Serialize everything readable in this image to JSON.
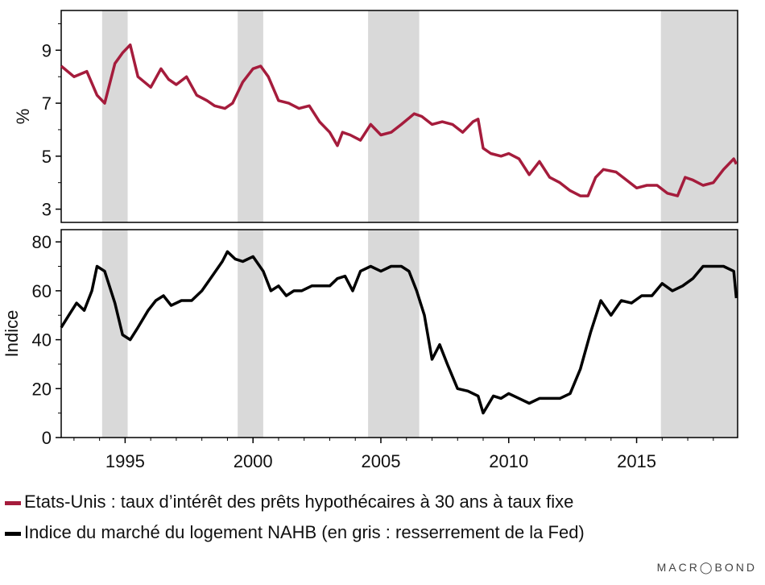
{
  "chart_data": [
    {
      "type": "line",
      "ylabel": "%",
      "ylim": [
        2.5,
        10.5
      ],
      "yticks": [
        3,
        5,
        7,
        9
      ],
      "color": "#a51c3c",
      "series": [
        {
          "name": "Etats-Unis : taux d’intérêt des prêts hypothécaires à 30 ans à taux fixe",
          "x": [
            1992.5,
            1993.0,
            1993.5,
            1993.9,
            1994.2,
            1994.6,
            1994.9,
            1995.2,
            1995.5,
            1996.0,
            1996.4,
            1996.7,
            1997.0,
            1997.4,
            1997.8,
            1998.2,
            1998.5,
            1998.9,
            1999.2,
            1999.6,
            2000.0,
            2000.3,
            2000.6,
            2001.0,
            2001.4,
            2001.8,
            2002.2,
            2002.6,
            2003.0,
            2003.3,
            2003.5,
            2003.8,
            2004.2,
            2004.6,
            2005.0,
            2005.4,
            2005.8,
            2006.3,
            2006.6,
            2007.0,
            2007.4,
            2007.8,
            2008.2,
            2008.6,
            2008.8,
            2009.0,
            2009.3,
            2009.7,
            2010.0,
            2010.4,
            2010.8,
            2011.2,
            2011.6,
            2012.0,
            2012.4,
            2012.8,
            2013.1,
            2013.4,
            2013.7,
            2014.2,
            2014.6,
            2015.0,
            2015.4,
            2015.8,
            2016.2,
            2016.6,
            2016.9,
            2017.2,
            2017.6,
            2018.0,
            2018.4,
            2018.8,
            2018.9
          ],
          "y": [
            8.4,
            8.0,
            8.2,
            7.3,
            7.0,
            8.5,
            8.9,
            9.2,
            8.0,
            7.6,
            8.3,
            7.9,
            7.7,
            8.0,
            7.3,
            7.1,
            6.9,
            6.8,
            7.0,
            7.8,
            8.3,
            8.4,
            8.0,
            7.1,
            7.0,
            6.8,
            6.9,
            6.3,
            5.9,
            5.4,
            5.9,
            5.8,
            5.6,
            6.2,
            5.8,
            5.9,
            6.2,
            6.6,
            6.5,
            6.2,
            6.3,
            6.2,
            5.9,
            6.3,
            6.4,
            5.3,
            5.1,
            5.0,
            5.1,
            4.9,
            4.3,
            4.8,
            4.2,
            4.0,
            3.7,
            3.5,
            3.5,
            4.2,
            4.5,
            4.4,
            4.1,
            3.8,
            3.9,
            3.9,
            3.6,
            3.5,
            4.2,
            4.1,
            3.9,
            4.0,
            4.5,
            4.9,
            4.7
          ]
        }
      ]
    },
    {
      "type": "line",
      "ylabel": "Indice",
      "ylim": [
        0,
        85
      ],
      "yticks": [
        0,
        20,
        40,
        60,
        80
      ],
      "color": "#000000",
      "xticks": [
        "1995",
        "2000",
        "2005",
        "2010",
        "2015"
      ],
      "xtick_values": [
        1995,
        2000,
        2005,
        2010,
        2015
      ],
      "series": [
        {
          "name": "Indice du marché du logement NAHB (en gris : resserrement de la Fed)",
          "x": [
            1992.5,
            1992.8,
            1993.1,
            1993.4,
            1993.7,
            1993.9,
            1994.2,
            1994.6,
            1994.9,
            1995.2,
            1995.5,
            1995.9,
            1996.2,
            1996.5,
            1996.8,
            1997.2,
            1997.6,
            1998.0,
            1998.4,
            1998.8,
            1999.0,
            1999.3,
            1999.6,
            2000.0,
            2000.4,
            2000.7,
            2001.0,
            2001.3,
            2001.6,
            2001.9,
            2002.3,
            2002.7,
            2003.0,
            2003.3,
            2003.6,
            2003.9,
            2004.2,
            2004.6,
            2005.0,
            2005.4,
            2005.8,
            2006.1,
            2006.4,
            2006.7,
            2007.0,
            2007.3,
            2007.6,
            2008.0,
            2008.4,
            2008.8,
            2009.0,
            2009.4,
            2009.7,
            2010.0,
            2010.4,
            2010.8,
            2011.2,
            2011.6,
            2012.0,
            2012.4,
            2012.8,
            2013.2,
            2013.6,
            2014.0,
            2014.4,
            2014.8,
            2015.2,
            2015.6,
            2016.0,
            2016.4,
            2016.8,
            2017.2,
            2017.6,
            2018.0,
            2018.4,
            2018.8,
            2018.9
          ],
          "y": [
            45,
            50,
            55,
            52,
            60,
            70,
            68,
            55,
            42,
            40,
            45,
            52,
            56,
            58,
            54,
            56,
            56,
            60,
            66,
            72,
            76,
            73,
            72,
            74,
            68,
            60,
            62,
            58,
            60,
            60,
            62,
            62,
            62,
            65,
            66,
            60,
            68,
            70,
            68,
            70,
            70,
            68,
            60,
            50,
            32,
            38,
            30,
            20,
            19,
            17,
            10,
            17,
            16,
            18,
            16,
            14,
            16,
            16,
            16,
            18,
            28,
            43,
            56,
            50,
            56,
            55,
            58,
            58,
            63,
            60,
            62,
            65,
            70,
            70,
            70,
            68,
            57
          ]
        }
      ]
    }
  ],
  "shaded_periods": [
    [
      1994.1,
      1995.1
    ],
    [
      1999.4,
      2000.4
    ],
    [
      2004.5,
      2006.5
    ],
    [
      2015.95,
      2018.95
    ]
  ],
  "x_range": [
    1992.5,
    2018.95
  ],
  "legend": {
    "item1": "Etats-Unis : taux d’intérêt des prêts hypothécaires à 30 ans à taux fixe",
    "item2": "Indice du marché du logement NAHB (en gris : resserrement de la Fed)",
    "color1": "#a51c3c",
    "color2": "#000000"
  },
  "brand": "MACR◯BOND"
}
